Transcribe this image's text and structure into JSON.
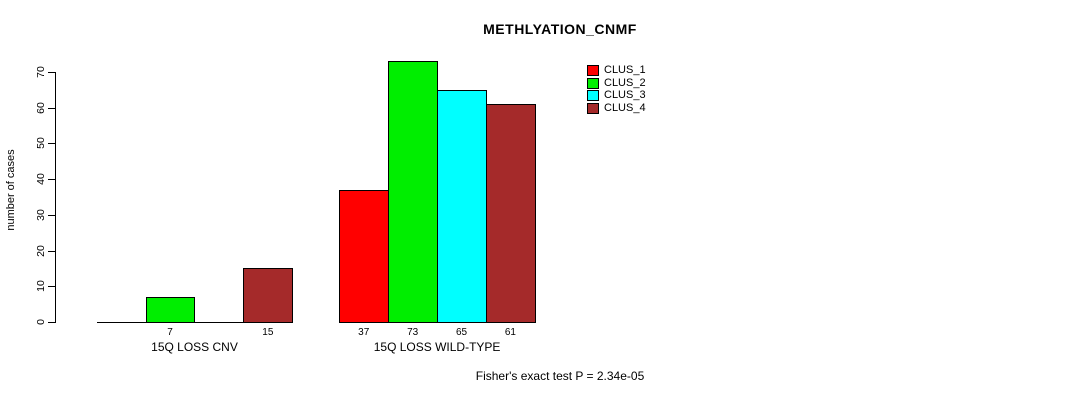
{
  "chart_data": {
    "type": "bar",
    "title": "METHLYATION_CNMF",
    "ylabel": "number of cases",
    "xlabel": "",
    "ylim": [
      0,
      70
    ],
    "yticks": [
      0,
      10,
      20,
      30,
      40,
      50,
      60,
      70
    ],
    "categories": [
      "15Q LOSS CNV",
      "15Q LOSS WILD-TYPE"
    ],
    "series": [
      {
        "name": "CLUS_1",
        "color": "#ff0000",
        "values": [
          0,
          37
        ]
      },
      {
        "name": "CLUS_2",
        "color": "#00ee00",
        "values": [
          7,
          73
        ]
      },
      {
        "name": "CLUS_3",
        "color": "#00ffff",
        "values": [
          0,
          65
        ]
      },
      {
        "name": "CLUS_4",
        "color": "#a52a2a",
        "values": [
          15,
          61
        ]
      }
    ],
    "bar_value_labels": {
      "shown_for_nonzero_only": true,
      "labels": [
        [
          "7",
          "15"
        ],
        [
          "37",
          "73",
          "65",
          "61"
        ]
      ]
    },
    "legend": {
      "position": "top-right",
      "entries": [
        "CLUS_1",
        "CLUS_2",
        "CLUS_3",
        "CLUS_4"
      ]
    },
    "grid": "off",
    "annotation": "Fisher's exact test P = 2.34e-05"
  }
}
